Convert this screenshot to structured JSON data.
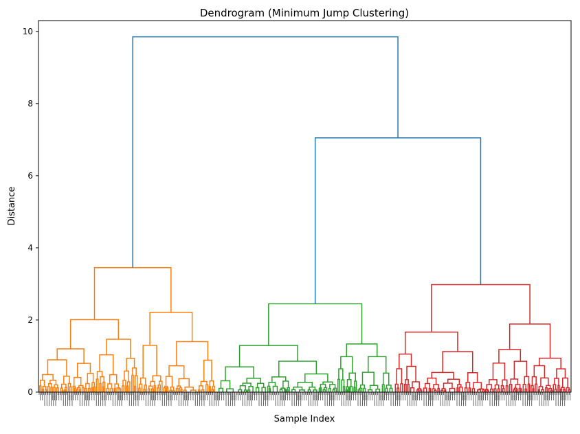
{
  "chart_data": {
    "type": "dendrogram",
    "title": "Dendrogram (Minimum Jump Clustering)",
    "xlabel": "Sample Index",
    "ylabel": "Distance",
    "ylim": [
      0,
      10.3
    ],
    "yticks": [
      0,
      2,
      4,
      6,
      8,
      10
    ],
    "grid": false,
    "leaf_labels_legible": false,
    "colors": {
      "above_threshold": "#1f77b4",
      "cluster_1": "#ff7f0e",
      "cluster_2": "#2ca02c",
      "cluster_3": "#d62728"
    },
    "top_merges": [
      {
        "height": 9.85,
        "joins": [
          "cluster_1",
          "cluster_2+cluster_3"
        ]
      },
      {
        "height": 7.05,
        "joins": [
          "cluster_2",
          "cluster_3"
        ]
      }
    ],
    "clusters": [
      {
        "key": "cluster_1",
        "root_height": 3.45,
        "leaf_span": [
          0.0,
          0.333
        ]
      },
      {
        "key": "cluster_2",
        "root_height": 2.45,
        "leaf_span": [
          0.333,
          0.667
        ]
      },
      {
        "key": "cluster_3",
        "root_height": 2.98,
        "leaf_span": [
          0.667,
          1.0
        ]
      }
    ]
  }
}
